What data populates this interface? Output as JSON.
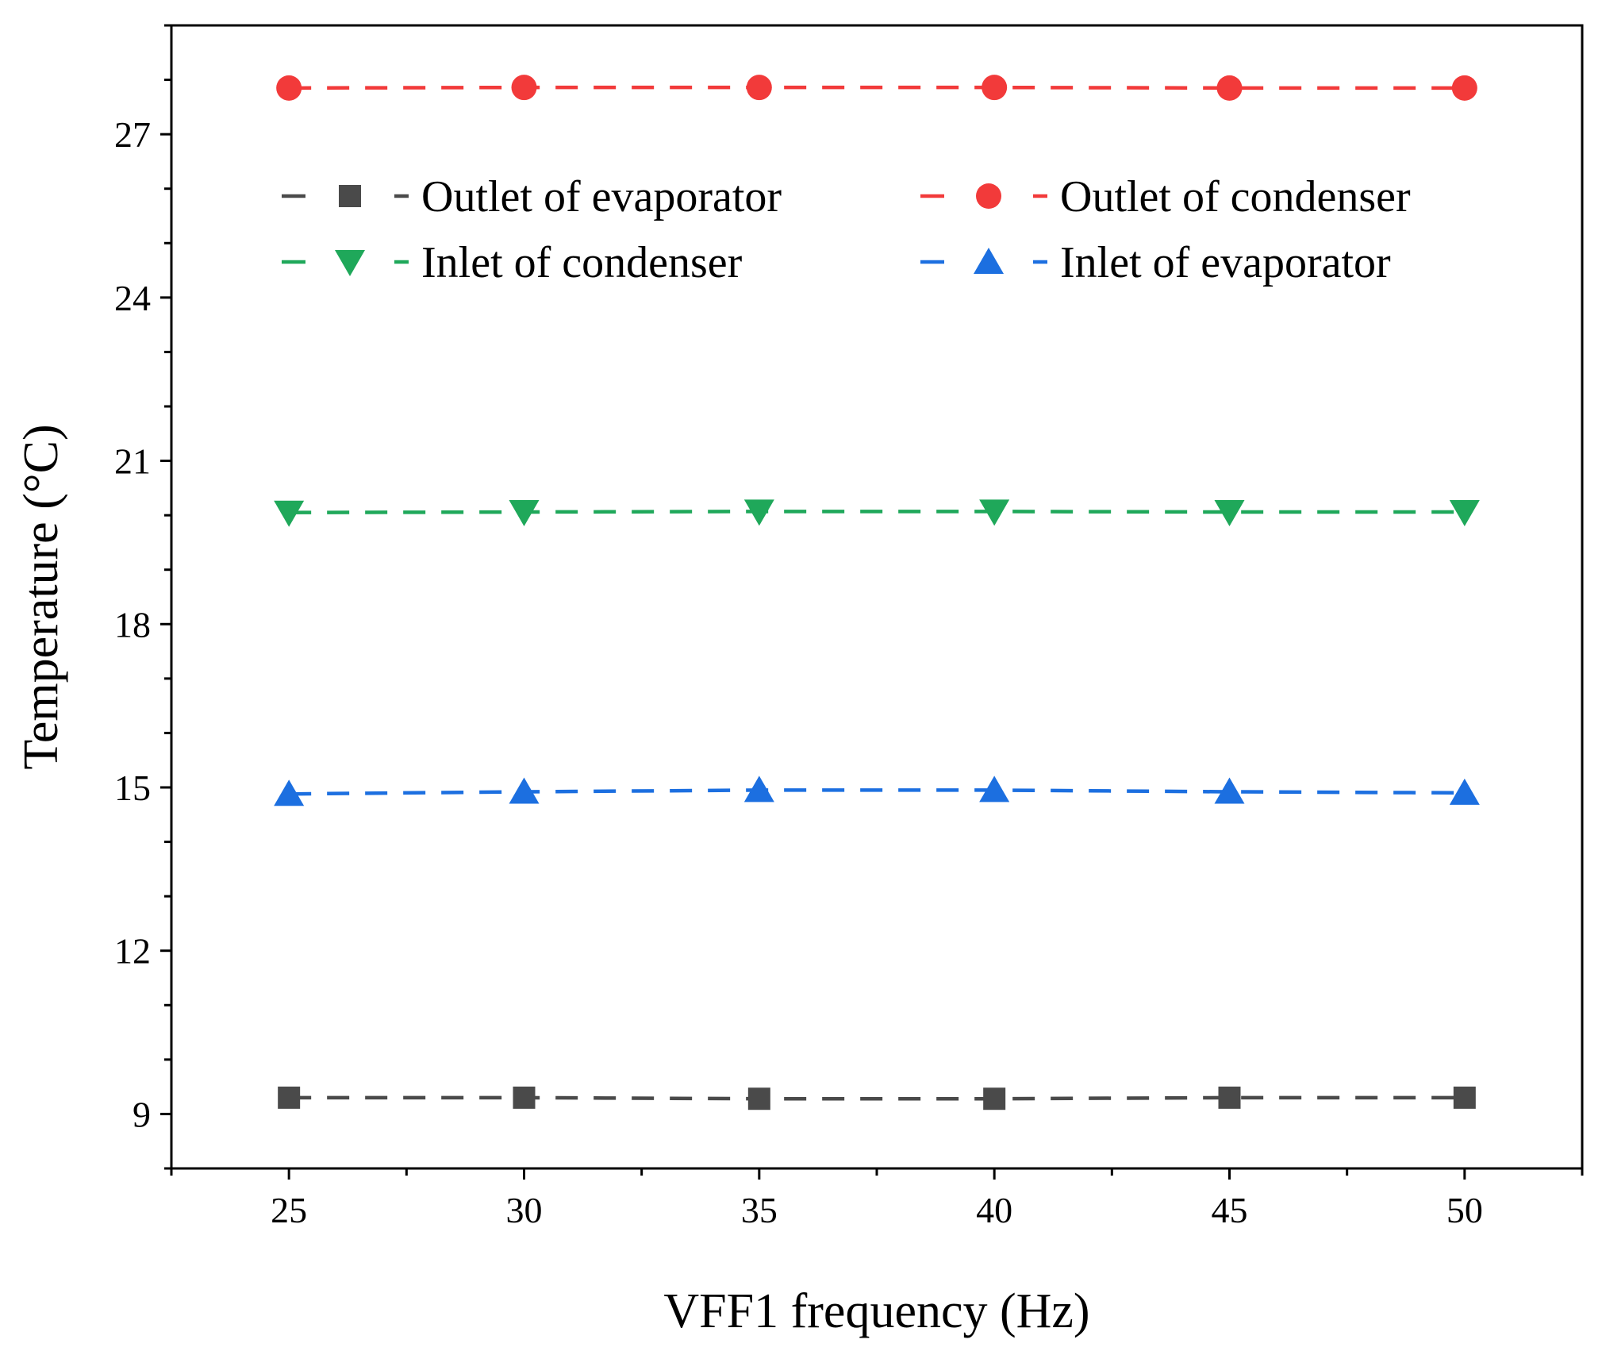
{
  "chart_data": {
    "type": "line",
    "xlabel": "VFF1 frequency (Hz)",
    "ylabel": "Temperature (°C)",
    "xlim": [
      22.5,
      52.5
    ],
    "ylim": [
      8.0,
      29.0
    ],
    "xticks": [
      25,
      30,
      35,
      40,
      45,
      50
    ],
    "yticks": [
      9,
      12,
      15,
      18,
      21,
      24,
      27
    ],
    "x": [
      25,
      30,
      35,
      40,
      45,
      50
    ],
    "series": [
      {
        "name": "Outlet of evaporator",
        "marker": "square",
        "color": "#4a4a4a",
        "values": [
          9.3,
          9.3,
          9.28,
          9.28,
          9.3,
          9.3
        ]
      },
      {
        "name": "Outlet of condenser",
        "marker": "circle",
        "color": "#f23a3a",
        "values": [
          27.85,
          27.86,
          27.86,
          27.86,
          27.85,
          27.85
        ]
      },
      {
        "name": "Inlet of condenser",
        "marker": "triangle-down",
        "color": "#1fa85a",
        "values": [
          20.05,
          20.06,
          20.07,
          20.07,
          20.06,
          20.06
        ]
      },
      {
        "name": "Inlet of evaporator",
        "marker": "triangle-up",
        "color": "#1c6fe0",
        "values": [
          14.88,
          14.92,
          14.95,
          14.95,
          14.92,
          14.9
        ]
      }
    ],
    "legend_order": [
      0,
      2,
      1,
      3
    ],
    "legend_position": "top, two columns",
    "grid": false
  }
}
